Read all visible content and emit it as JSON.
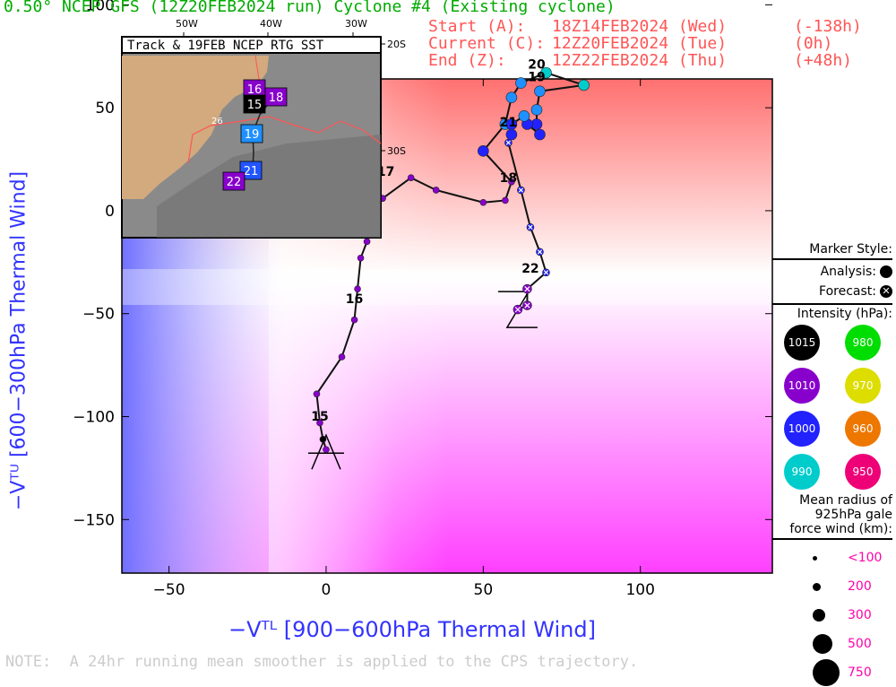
{
  "header": {
    "title": "0.50° NCEP GFS (12Z20FEB2024 run) Cyclone #4 (Existing cyclone)",
    "start_label": "Start (A):",
    "start_value": "18Z14FEB2024 (Wed)",
    "start_offset": "(-138h)",
    "current_label": "Current (C):",
    "current_value": "12Z20FEB2024 (Tue)",
    "current_offset": "(0h)",
    "end_label": "End (Z):",
    "end_value": "12Z22FEB2024 (Thu)",
    "end_offset": "(+48h)"
  },
  "axes": {
    "ylabel": "−Vᵀᵁ [600−300hPa Thermal Wind]",
    "xlabel": "−Vᵀᴸ [900−600hPa Thermal Wind]"
  },
  "note": "NOTE:  A 24hr running mean smoother is applied to the CPS trajectory.",
  "legend": {
    "marker_style_title": "Marker Style:",
    "analysis_label": "Analysis:",
    "forecast_label": "Forecast:",
    "intensity_title": "Intensity (hPa):",
    "intensity": [
      {
        "label": "1015",
        "color": "#000000",
        "text_color": "#ffffff"
      },
      {
        "label": "980",
        "color": "#00dd00",
        "text_color": "#ffffff"
      },
      {
        "label": "1010",
        "color": "#8800cc",
        "text_color": "#ffffff"
      },
      {
        "label": "970",
        "color": "#dddd00",
        "text_color": "#ffffff"
      },
      {
        "label": "1000",
        "color": "#2222ff",
        "text_color": "#ffffff"
      },
      {
        "label": "960",
        "color": "#ee7700",
        "text_color": "#ffffff"
      },
      {
        "label": "990",
        "color": "#00cccc",
        "text_color": "#ffffff"
      },
      {
        "label": "950",
        "color": "#ee0077",
        "text_color": "#ffffff"
      }
    ],
    "radius_title_1": "Mean radius of",
    "radius_title_2": "925hPa gale",
    "radius_title_3": "force wind (km):",
    "radii": [
      "<100",
      "200",
      "300",
      "500",
      "750"
    ]
  },
  "inset": {
    "title": "Track & 19FEB NCEP RTG SST",
    "lon_labels": [
      "50W",
      "40W",
      "30W"
    ],
    "lat_labels": [
      "20S",
      "30S"
    ],
    "sst_label": "26",
    "day_labels": [
      {
        "text": "16",
        "color": "#8800cc"
      },
      {
        "text": "18",
        "color": "#8800cc"
      },
      {
        "text": "15",
        "color": "#000000"
      },
      {
        "text": "19",
        "color": "#1e90ff"
      },
      {
        "text": "21",
        "color": "#2255ff"
      },
      {
        "text": "22",
        "color": "#8800cc"
      }
    ]
  },
  "chart_data": {
    "type": "scatter",
    "title": "0.50° NCEP GFS (12Z20FEB2024 run) Cyclone #4 (Existing cyclone)",
    "xlabel": "−Vᵀᴸ [900−600hPa Thermal Wind]",
    "ylabel": "−Vᵀᵁ [600−300hPa Thermal Wind]",
    "xlim": [
      -65,
      142
    ],
    "ylim": [
      -176,
      64
    ],
    "xticks": [
      -50,
      0,
      50,
      100
    ],
    "yticks": [
      -150,
      -100,
      -50,
      0,
      50,
      100
    ],
    "grid": false,
    "series": [
      {
        "name": "Analysis",
        "points": [
          {
            "x": 0,
            "y": -116,
            "c": "#8800cc"
          },
          {
            "x": -1,
            "y": -111,
            "c": "#000000"
          },
          {
            "x": -2,
            "y": -103,
            "c": "#8800cc"
          },
          {
            "x": -3,
            "y": -89,
            "c": "#8800cc"
          },
          {
            "x": 5,
            "y": -71,
            "c": "#8800cc"
          },
          {
            "x": 9,
            "y": -53,
            "c": "#8800cc"
          },
          {
            "x": 10,
            "y": -38,
            "c": "#8800cc"
          },
          {
            "x": 11,
            "y": -23,
            "c": "#8800cc"
          },
          {
            "x": 13,
            "y": -15,
            "c": "#8800cc"
          },
          {
            "x": 15,
            "y": -2,
            "c": "#8800cc"
          },
          {
            "x": 18,
            "y": 6,
            "c": "#8800cc"
          },
          {
            "x": 27,
            "y": 16,
            "c": "#8800cc"
          },
          {
            "x": 35,
            "y": 10,
            "c": "#8800cc"
          },
          {
            "x": 50,
            "y": 4,
            "c": "#8800cc"
          },
          {
            "x": 57,
            "y": 5,
            "c": "#8800cc"
          },
          {
            "x": 59,
            "y": 14,
            "c": "#8800cc"
          },
          {
            "x": 50,
            "y": 29,
            "c": "#2222ff"
          },
          {
            "x": 57,
            "y": 42,
            "c": "#1e90ff"
          },
          {
            "x": 59,
            "y": 55,
            "c": "#1e90ff"
          },
          {
            "x": 62,
            "y": 62,
            "c": "#1e90ff"
          },
          {
            "x": 70,
            "y": 67,
            "c": "#00cccc"
          },
          {
            "x": 82,
            "y": 61,
            "c": "#00cccc"
          },
          {
            "x": 68,
            "y": 58,
            "c": "#1e90ff"
          },
          {
            "x": 67,
            "y": 49,
            "c": "#1e90ff"
          },
          {
            "x": 67,
            "y": 42,
            "c": "#2222ff"
          },
          {
            "x": 68,
            "y": 37,
            "c": "#2222ff"
          },
          {
            "x": 64,
            "y": 42,
            "c": "#2222ff"
          },
          {
            "x": 63,
            "y": 46,
            "c": "#1e90ff"
          },
          {
            "x": 59,
            "y": 42,
            "c": "#2222ff"
          },
          {
            "x": 59,
            "y": 37,
            "c": "#2222ff"
          }
        ]
      },
      {
        "name": "Forecast",
        "points": [
          {
            "x": 58,
            "y": 33,
            "c": "#2222ff"
          },
          {
            "x": 62,
            "y": 10,
            "c": "#2222ff"
          },
          {
            "x": 65,
            "y": -8,
            "c": "#2222ff"
          },
          {
            "x": 68,
            "y": -20,
            "c": "#2222ff"
          },
          {
            "x": 70,
            "y": -30,
            "c": "#2222ff"
          },
          {
            "x": 64,
            "y": -38,
            "c": "#8800cc"
          },
          {
            "x": 64,
            "y": -46,
            "c": "#8800cc"
          },
          {
            "x": 61,
            "y": -48,
            "c": "#8800cc"
          }
        ]
      }
    ],
    "day_labels": [
      {
        "text": "15",
        "x": -2,
        "y": -102
      },
      {
        "text": "16",
        "x": 9,
        "y": -45
      },
      {
        "text": "17",
        "x": 19,
        "y": 17
      },
      {
        "text": "18",
        "x": 58,
        "y": 14
      },
      {
        "text": "19",
        "x": 67,
        "y": 63
      },
      {
        "text": "20",
        "x": 67,
        "y": 69
      },
      {
        "text": "21",
        "x": 58,
        "y": 41
      },
      {
        "text": "22",
        "x": 65,
        "y": -30
      }
    ],
    "start_marker": "A",
    "end_marker": "Z"
  }
}
